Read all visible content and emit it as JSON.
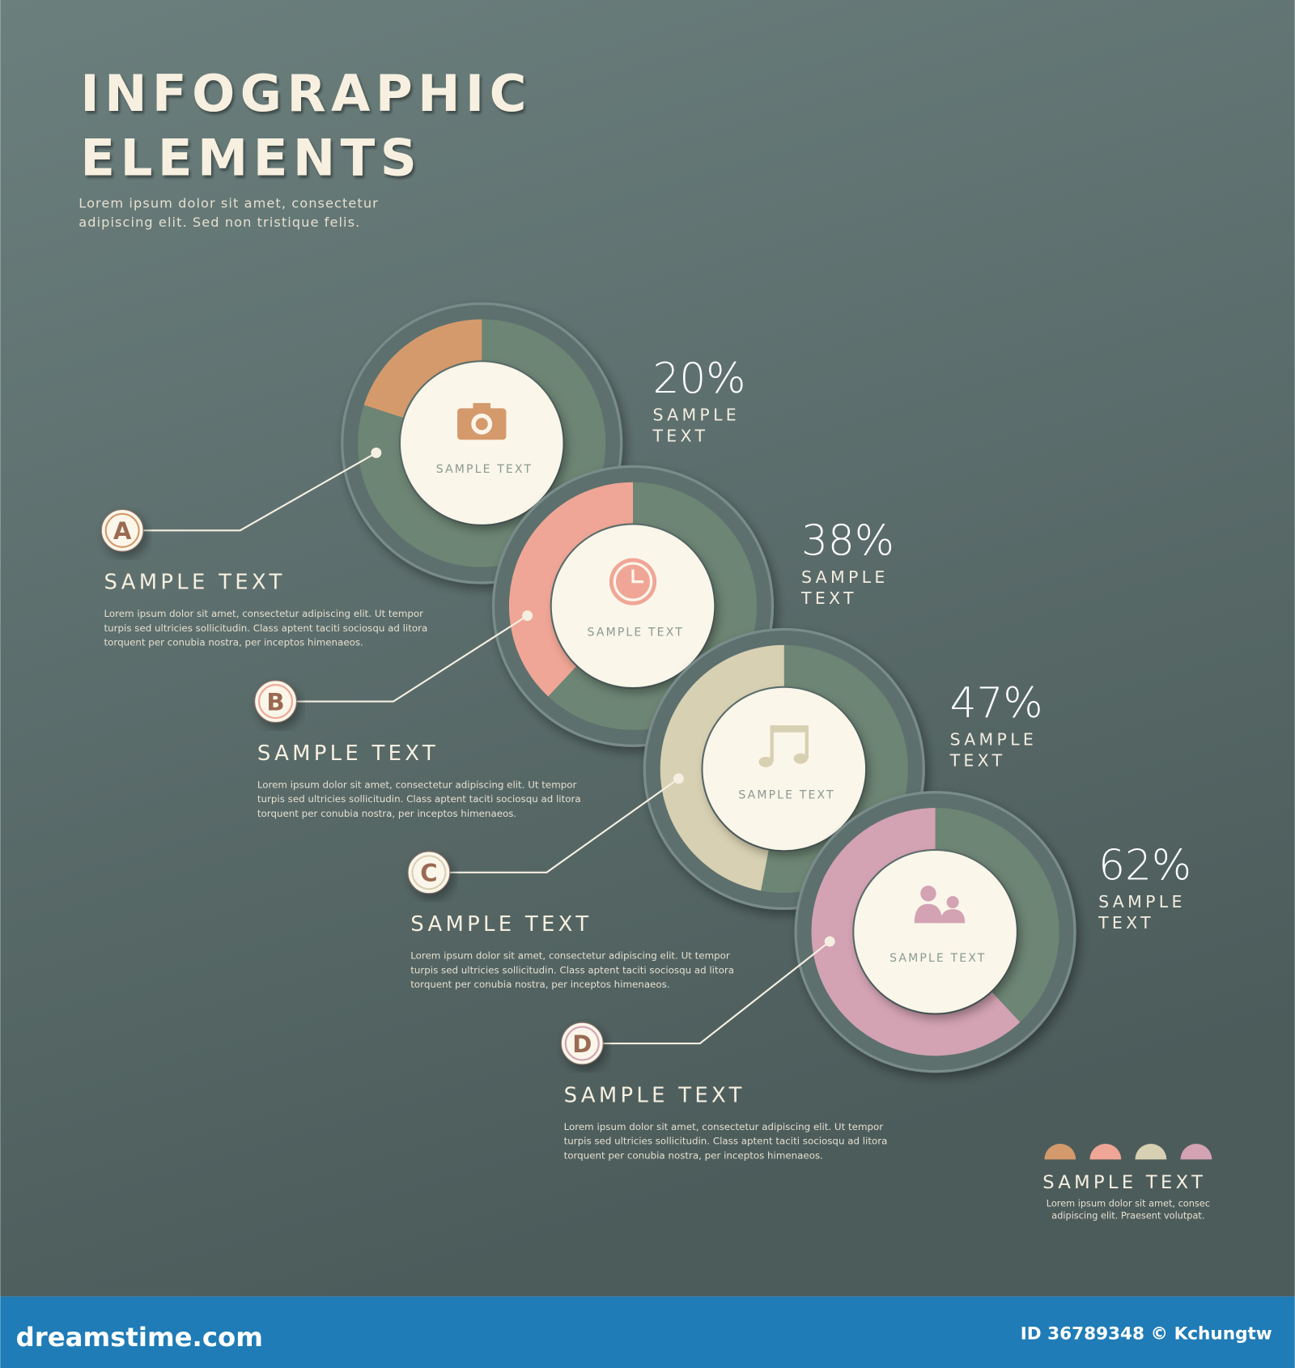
{
  "header": {
    "title": [
      "INFOGRAPHIC",
      "ELEMENTS"
    ],
    "subtitle": [
      "Lorem ipsum dolor sit amet, consectetur",
      "adipiscing elit. Sed non tristique felis."
    ]
  },
  "chart_data": [
    {
      "type": "donut",
      "values": [
        20
      ],
      "value_labels": [
        "20%"
      ],
      "color": "#d59a6c",
      "center_text": "SAMPLE TEXT",
      "side_label": [
        "SAMPLE",
        "TEXT"
      ],
      "letter": "A",
      "heading": "SAMPLE TEXT",
      "body": [
        "Lorem ipsum dolor sit amet, consectetur adipiscing elit. Ut tempor",
        "turpis sed ultricies sollicitudin. Class aptent taciti sociosqu ad litora",
        "torquent per conubia nostra, per inceptos himenaeos."
      ]
    },
    {
      "type": "donut",
      "values": [
        38
      ],
      "value_labels": [
        "38%"
      ],
      "color": "#f0a696",
      "center_text": "SAMPLE TEXT",
      "side_label": [
        "SAMPLE",
        "TEXT"
      ],
      "letter": "B",
      "heading": "SAMPLE TEXT",
      "body": [
        "Lorem ipsum dolor sit amet, consectetur adipiscing elit. Ut tempor",
        "turpis sed ultricies sollicitudin. Class aptent taciti sociosqu ad litora",
        "torquent per conubia nostra, per inceptos himenaeos."
      ]
    },
    {
      "type": "donut",
      "values": [
        47
      ],
      "value_labels": [
        "47%"
      ],
      "color": "#d8d0b2",
      "center_text": "SAMPLE TEXT",
      "side_label": [
        "SAMPLE",
        "TEXT"
      ],
      "letter": "C",
      "heading": "SAMPLE TEXT",
      "body": [
        "Lorem ipsum dolor sit amet, consectetur adipiscing elit. Ut tempor",
        "turpis sed ultricies sollicitudin. Class aptent taciti sociosqu ad litora",
        "torquent per conubia nostra, per inceptos himenaeos."
      ]
    },
    {
      "type": "donut",
      "values": [
        62
      ],
      "value_labels": [
        "62%"
      ],
      "color": "#d3a2b3",
      "center_text": "SAMPLE TEXT",
      "side_label": [
        "SAMPLE",
        "TEXT"
      ],
      "letter": "D",
      "heading": "SAMPLE TEXT",
      "body": [
        "Lorem ipsum dolor sit amet, consectetur adipiscing elit. Ut tempor",
        "turpis sed ultricies sollicitudin. Class aptent taciti sociosqu ad litora",
        "torquent per conubia nostra, per inceptos himenaeos."
      ]
    }
  ],
  "legend": {
    "heading": "SAMPLE TEXT",
    "body": [
      "Lorem ipsum dolor sit amet, consec",
      "adipiscing elit. Praesent volutpat."
    ]
  },
  "footer": {
    "site": "dreamstime.com",
    "credit": "ID 36789348 © Kchungtw"
  }
}
